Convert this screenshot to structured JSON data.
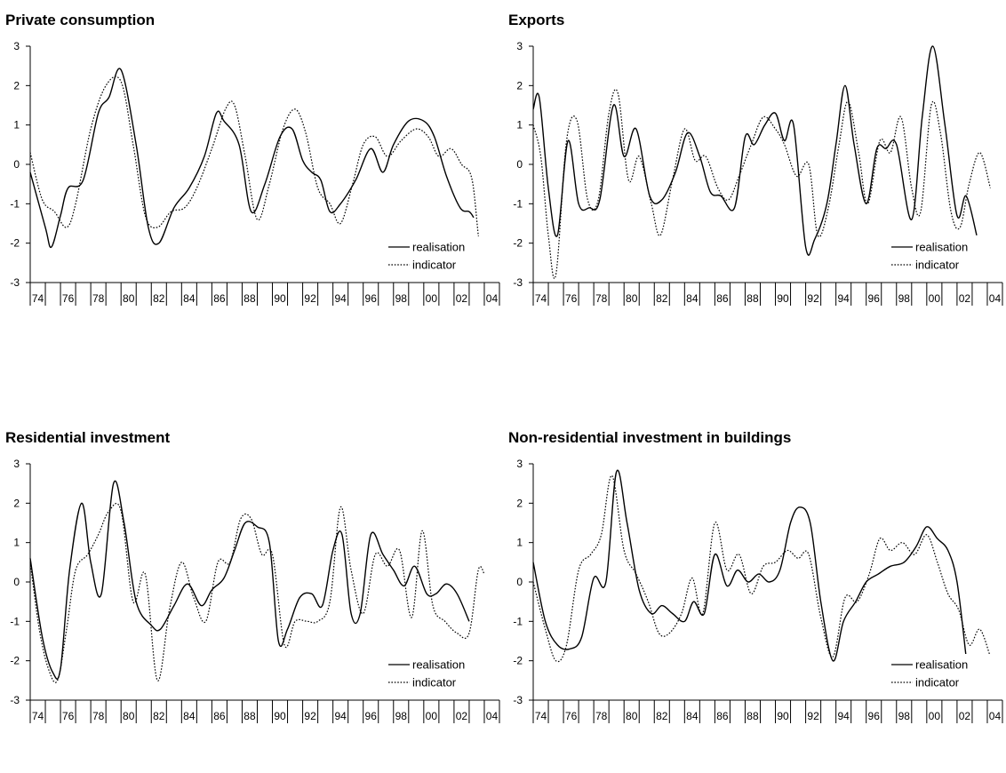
{
  "chart_data": [
    {
      "type": "line",
      "title": "Private consumption",
      "xlabel": "",
      "ylabel": "",
      "ylim": [
        -3,
        3
      ],
      "yticks": [
        3,
        2,
        1,
        0,
        -1,
        -2,
        -3
      ],
      "xlim": [
        1974,
        2005
      ],
      "xtick_labels": [
        "74",
        "76",
        "78",
        "80",
        "82",
        "84",
        "86",
        "88",
        "90",
        "92",
        "94",
        "96",
        "98",
        "00",
        "02",
        "04"
      ],
      "legend_position": "bottom-right",
      "grid": false,
      "series": [
        {
          "name": "realisation",
          "style": "solid",
          "x": [
            1974,
            1975,
            1975.4,
            1976,
            1976.5,
            1977.5,
            1978.5,
            1979.2,
            1980,
            1981,
            1981.8,
            1982.5,
            1983.5,
            1984.5,
            1985.5,
            1986.3,
            1986.8,
            1987.8,
            1988.6,
            1989.5,
            1990.5,
            1991.3,
            1992,
            1992.6,
            1993.2,
            1993.8,
            1994.5,
            1995.5,
            1996.5,
            1997.3,
            1998,
            1999,
            2000,
            2000.7,
            2001.5,
            2002.4,
            2003,
            2003.3
          ],
          "y": [
            -0.2,
            -1.6,
            -2.1,
            -1.3,
            -0.6,
            -0.4,
            1.3,
            1.7,
            2.4,
            0.5,
            -1.6,
            -2.0,
            -1.1,
            -0.6,
            0.2,
            1.3,
            1.1,
            0.5,
            -1.2,
            -0.5,
            0.7,
            0.9,
            0.1,
            -0.2,
            -0.4,
            -1.2,
            -1.0,
            -0.4,
            0.4,
            -0.2,
            0.5,
            1.1,
            1.1,
            0.7,
            -0.3,
            -1.1,
            -1.2,
            -1.35
          ]
        },
        {
          "name": "indicator",
          "style": "dotted",
          "x": [
            1974,
            1974.8,
            1975.6,
            1976.4,
            1977,
            1978,
            1979,
            1980,
            1980.8,
            1981.6,
            1982.4,
            1983.3,
            1984.2,
            1985,
            1986,
            1986.9,
            1987.5,
            1988.2,
            1989,
            1989.8,
            1990.7,
            1991.5,
            1992.2,
            1993,
            1993.8,
            1994.5,
            1995.3,
            1996,
            1996.8,
            1997.6,
            1998.5,
            1999.5,
            2000.3,
            2001,
            2001.8,
            2002.5,
            2003.2,
            2003.8,
            2004.5
          ],
          "y": [
            0.3,
            -0.9,
            -1.2,
            -1.6,
            -1.0,
            0.9,
            2.0,
            2.1,
            0.5,
            -1.3,
            -1.6,
            -1.2,
            -1.1,
            -0.6,
            0.4,
            1.4,
            1.5,
            0.2,
            -1.4,
            -0.5,
            0.9,
            1.4,
            0.8,
            -0.6,
            -1.0,
            -1.5,
            -0.5,
            0.5,
            0.7,
            0.2,
            0.6,
            0.9,
            0.7,
            0.2,
            0.4,
            0.0,
            -0.4,
            -2.3,
            -1.9
          ]
        }
      ]
    },
    {
      "type": "line",
      "title": "Exports",
      "xlabel": "",
      "ylabel": "",
      "ylim": [
        -3,
        3
      ],
      "yticks": [
        3,
        2,
        1,
        0,
        -1,
        -2,
        -3
      ],
      "xlim": [
        1974,
        2005
      ],
      "xtick_labels": [
        "74",
        "76",
        "78",
        "80",
        "82",
        "84",
        "86",
        "88",
        "90",
        "92",
        "94",
        "96",
        "98",
        "00",
        "02",
        "04"
      ],
      "legend_position": "bottom-right",
      "grid": false,
      "series": [
        {
          "name": "realisation",
          "style": "solid",
          "x": [
            1974,
            1974.4,
            1975,
            1975.6,
            1976.3,
            1977,
            1977.7,
            1978.4,
            1979.3,
            1980,
            1980.8,
            1981.7,
            1982.5,
            1983.4,
            1984.2,
            1985,
            1985.7,
            1986.4,
            1987.3,
            1988,
            1988.6,
            1989.3,
            1990,
            1990.6,
            1991.2,
            1992,
            1992.6,
            1993.4,
            1994,
            1994.6,
            1995.2,
            1996,
            1996.7,
            1997.3,
            1998,
            1999,
            1999.7,
            2000.4,
            2001.2,
            2002,
            2002.6,
            2003.3
          ],
          "y": [
            1.4,
            1.7,
            -0.6,
            -1.8,
            0.6,
            -1.0,
            -1.1,
            -0.9,
            1.5,
            0.2,
            0.9,
            -0.8,
            -0.9,
            -0.2,
            0.8,
            0.2,
            -0.7,
            -0.8,
            -1.1,
            0.7,
            0.5,
            1.0,
            1.3,
            0.6,
            1.0,
            -2.1,
            -1.9,
            -1.0,
            0.5,
            2.0,
            0.5,
            -1.0,
            0.4,
            0.4,
            0.5,
            -1.4,
            1.2,
            3.0,
            1.0,
            -1.3,
            -0.8,
            -1.8
          ]
        },
        {
          "name": "indicator",
          "style": "dotted",
          "x": [
            1974,
            1974.5,
            1975,
            1975.5,
            1976.2,
            1976.9,
            1977.6,
            1978.3,
            1979,
            1979.6,
            1980.3,
            1981,
            1981.8,
            1982.4,
            1983.2,
            1984,
            1984.7,
            1985.4,
            1986.2,
            1986.9,
            1987.6,
            1988.4,
            1989.2,
            1990,
            1990.6,
            1991.4,
            1992.2,
            1992.8,
            1993.5,
            1994.2,
            1994.8,
            1995.5,
            1996.1,
            1996.9,
            1997.6,
            1998.3,
            1999,
            1999.6,
            2000.3,
            2000.9,
            2001.6,
            2002.2,
            2002.8,
            2003.5,
            2004.2
          ],
          "y": [
            1.0,
            0.2,
            -1.8,
            -2.8,
            0.6,
            1.1,
            -0.9,
            -0.9,
            1.3,
            1.8,
            -0.4,
            0.2,
            -1.0,
            -1.8,
            -0.4,
            0.9,
            0.1,
            0.2,
            -0.6,
            -0.9,
            -0.3,
            0.5,
            1.2,
            0.9,
            0.5,
            -0.3,
            0.0,
            -1.8,
            -1.1,
            0.5,
            1.6,
            0.3,
            -1.0,
            0.6,
            0.3,
            1.2,
            -0.6,
            -1.2,
            1.5,
            0.8,
            -1.2,
            -1.6,
            -0.5,
            0.3,
            -0.6
          ]
        }
      ]
    },
    {
      "type": "line",
      "title": "Residential investment",
      "xlabel": "",
      "ylabel": "",
      "ylim": [
        -3,
        3
      ],
      "yticks": [
        3,
        2,
        1,
        0,
        -1,
        -2,
        -3
      ],
      "xlim": [
        1974,
        2005
      ],
      "xtick_labels": [
        "74",
        "76",
        "78",
        "80",
        "82",
        "84",
        "86",
        "88",
        "90",
        "92",
        "94",
        "96",
        "98",
        "00",
        "02",
        "04"
      ],
      "legend_position": "bottom-right",
      "grid": false,
      "series": [
        {
          "name": "realisation",
          "style": "solid",
          "x": [
            1974,
            1974.8,
            1975.5,
            1976,
            1976.6,
            1977.4,
            1978,
            1978.7,
            1979.5,
            1980.2,
            1981,
            1982,
            1982.6,
            1983.5,
            1984.4,
            1985.3,
            1986,
            1986.8,
            1987.5,
            1988.2,
            1989,
            1989.8,
            1990.4,
            1991,
            1991.8,
            1992.6,
            1993.3,
            1994,
            1994.6,
            1995.2,
            1995.8,
            1996.5,
            1997.3,
            1998,
            1998.7,
            1999.4,
            2000.2,
            2000.8,
            2001.5,
            2002.2,
            2003
          ],
          "y": [
            0.6,
            -1.4,
            -2.3,
            -2.2,
            0.3,
            2.0,
            0.5,
            -0.3,
            2.5,
            1.5,
            -0.5,
            -1.1,
            -1.2,
            -0.6,
            -0.05,
            -0.6,
            -0.2,
            0.1,
            0.8,
            1.5,
            1.4,
            1.0,
            -1.5,
            -1.2,
            -0.4,
            -0.3,
            -0.6,
            0.8,
            1.2,
            -0.8,
            -0.8,
            1.2,
            0.7,
            0.3,
            -0.1,
            0.4,
            -0.3,
            -0.3,
            -0.05,
            -0.3,
            -1.0
          ]
        },
        {
          "name": "indicator",
          "style": "dotted",
          "x": [
            1974,
            1974.6,
            1975.2,
            1975.8,
            1976.4,
            1977,
            1977.8,
            1978.5,
            1979.2,
            1980,
            1980.8,
            1981.6,
            1982.4,
            1983.2,
            1984,
            1984.8,
            1985.6,
            1986.4,
            1987.2,
            1987.9,
            1988.6,
            1989.3,
            1990,
            1990.8,
            1991.5,
            1992.3,
            1993,
            1993.8,
            1994.5,
            1995.2,
            1996,
            1996.8,
            1997.6,
            1998.4,
            1999.2,
            1999.9,
            2000.6,
            2001.4,
            2002.2,
            2003,
            2003.6,
            2004
          ],
          "y": [
            0.5,
            -1.2,
            -2.2,
            -2.5,
            -1.2,
            0.3,
            0.7,
            1.2,
            1.8,
            1.8,
            -0.5,
            0.2,
            -2.5,
            -0.7,
            0.5,
            -0.4,
            -1.0,
            0.5,
            0.5,
            1.6,
            1.6,
            0.7,
            0.7,
            -1.6,
            -1.0,
            -1.0,
            -1.0,
            -0.5,
            1.9,
            0.3,
            -0.8,
            0.7,
            0.4,
            0.8,
            -0.9,
            1.3,
            -0.6,
            -1.0,
            -1.3,
            -1.3,
            0.3,
            0.2
          ]
        }
      ]
    },
    {
      "type": "line",
      "title": "Non-residential investment in buildings",
      "xlabel": "",
      "ylabel": "",
      "ylim": [
        -3,
        3
      ],
      "yticks": [
        3,
        2,
        1,
        0,
        -1,
        -2,
        -3
      ],
      "xlim": [
        1974,
        2005
      ],
      "xtick_labels": [
        "74",
        "76",
        "78",
        "80",
        "82",
        "84",
        "86",
        "88",
        "90",
        "92",
        "94",
        "96",
        "98",
        "00",
        "02",
        "04"
      ],
      "legend_position": "bottom-right",
      "grid": false,
      "series": [
        {
          "name": "realisation",
          "style": "solid",
          "x": [
            1974,
            1974.8,
            1975.6,
            1976.4,
            1977.2,
            1978,
            1978.8,
            1979.5,
            1980.2,
            1981,
            1981.8,
            1982.5,
            1983.2,
            1984,
            1984.6,
            1985.3,
            1986,
            1986.8,
            1987.5,
            1988.2,
            1988.9,
            1989.6,
            1990.3,
            1991,
            1991.6,
            1992.3,
            1993,
            1993.8,
            1994.5,
            1995.3,
            1996,
            1996.8,
            1997.6,
            1998.5,
            1999.3,
            2000,
            2000.7,
            2001.4,
            2002,
            2002.6
          ],
          "y": [
            0.5,
            -1.0,
            -1.6,
            -1.7,
            -1.4,
            0.1,
            0.0,
            2.8,
            1.5,
            -0.2,
            -0.8,
            -0.6,
            -0.8,
            -1.0,
            -0.5,
            -0.8,
            0.7,
            -0.1,
            0.3,
            0.0,
            0.2,
            0.0,
            0.3,
            1.5,
            1.9,
            1.5,
            -0.5,
            -2.0,
            -1.0,
            -0.5,
            0.0,
            0.2,
            0.4,
            0.5,
            0.9,
            1.4,
            1.1,
            0.8,
            0.0,
            -1.9
          ]
        },
        {
          "name": "indicator",
          "style": "dotted",
          "x": [
            1974,
            1974.8,
            1975.5,
            1976.2,
            1977,
            1977.8,
            1978.5,
            1979.2,
            1980,
            1980.8,
            1981.6,
            1982.3,
            1983,
            1983.8,
            1984.5,
            1985.2,
            1986,
            1986.8,
            1987.6,
            1988.4,
            1989.2,
            1990,
            1990.8,
            1991.5,
            1992.2,
            1993,
            1993.8,
            1994.6,
            1995.4,
            1996.2,
            1996.9,
            1997.6,
            1998.4,
            1999.2,
            2000,
            2000.7,
            2001.4,
            2002.1,
            2002.8,
            2003.5,
            2004.2
          ],
          "y": [
            0.0,
            -1.2,
            -2.0,
            -1.6,
            0.3,
            0.7,
            1.2,
            2.7,
            0.8,
            0.2,
            -0.5,
            -1.3,
            -1.3,
            -0.8,
            0.1,
            -0.8,
            1.5,
            0.3,
            0.7,
            -0.3,
            0.4,
            0.5,
            0.8,
            0.6,
            0.7,
            -0.9,
            -1.9,
            -0.4,
            -0.5,
            0.2,
            1.1,
            0.8,
            1.0,
            0.7,
            1.2,
            0.5,
            -0.3,
            -0.7,
            -1.6,
            -1.2,
            -1.9
          ]
        }
      ]
    }
  ]
}
